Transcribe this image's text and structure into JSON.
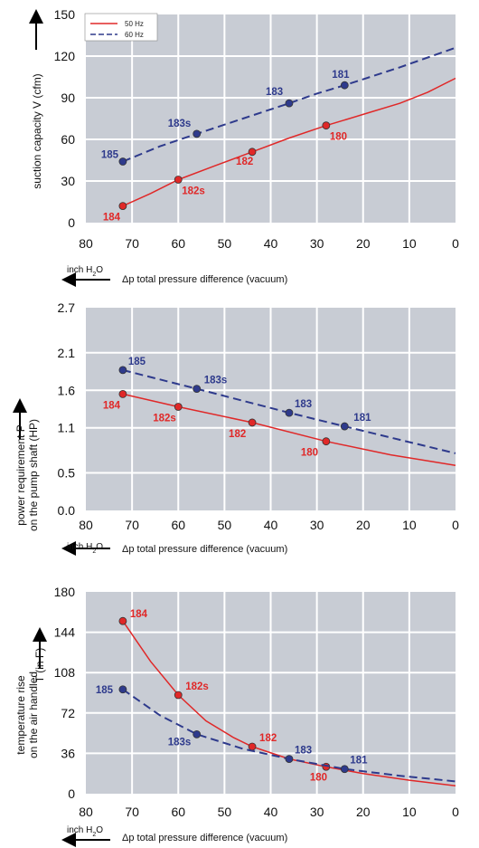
{
  "colors": {
    "series_50": "#e02828",
    "series_60": "#2e3a8c",
    "plot_bg": "#c8ccd4",
    "grid": "#ffffff"
  },
  "legend": {
    "s50": "50 Hz",
    "s60": "60 Hz"
  },
  "arrow_unit": "inch H2O",
  "chart_data": [
    {
      "type": "line",
      "ylabel": "suction capacity V (cfm)",
      "xlabel": "Δp   total pressure difference (vacuum)",
      "xlim": [
        80,
        0
      ],
      "ylim": [
        0,
        150
      ],
      "xticks": [
        80,
        70,
        60,
        50,
        40,
        30,
        20,
        10,
        0
      ],
      "yticks": [
        0,
        30,
        60,
        90,
        120,
        150
      ],
      "legend_position": "top-left",
      "series": [
        {
          "name": "50 Hz",
          "style": "solid",
          "color": "#e02828",
          "curve": [
            [
              72,
              12
            ],
            [
              66,
              21
            ],
            [
              60,
              31
            ],
            [
              52,
              41
            ],
            [
              44,
              51
            ],
            [
              36,
              61
            ],
            [
              28,
              70
            ],
            [
              20,
              78
            ],
            [
              12,
              86
            ],
            [
              6,
              94
            ],
            [
              0,
              104
            ]
          ],
          "points": [
            {
              "x": 72,
              "y": 12,
              "label": "184"
            },
            {
              "x": 60,
              "y": 31,
              "label": "182s"
            },
            {
              "x": 44,
              "y": 51,
              "label": "182"
            },
            {
              "x": 28,
              "y": 70,
              "label": "180"
            }
          ]
        },
        {
          "name": "60 Hz",
          "style": "dashed",
          "color": "#2e3a8c",
          "curve": [
            [
              72,
              44
            ],
            [
              64,
              55
            ],
            [
              56,
              64
            ],
            [
              46,
              75
            ],
            [
              36,
              86
            ],
            [
              30,
              93
            ],
            [
              24,
              99
            ],
            [
              12,
              112
            ],
            [
              0,
              126
            ]
          ],
          "points": [
            {
              "x": 72,
              "y": 44,
              "label": "185"
            },
            {
              "x": 56,
              "y": 64,
              "label": "183s"
            },
            {
              "x": 36,
              "y": 86,
              "label": "183"
            },
            {
              "x": 24,
              "y": 99,
              "label": "181"
            }
          ]
        }
      ]
    },
    {
      "type": "line",
      "ylabel": "power requirement P on the pump shaft (HP)",
      "xlabel": "Δp   total pressure difference (vacuum)",
      "xlim": [
        80,
        0
      ],
      "ylim": [
        0,
        2.7
      ],
      "xticks": [
        80,
        70,
        60,
        50,
        40,
        30,
        20,
        10,
        0
      ],
      "yticks": [
        0.0,
        0.5,
        1.1,
        1.6,
        2.1,
        2.7
      ],
      "series": [
        {
          "name": "50 Hz",
          "style": "solid",
          "color": "#e02828",
          "curve": [
            [
              72,
              1.55
            ],
            [
              60,
              1.38
            ],
            [
              44,
              1.17
            ],
            [
              28,
              0.92
            ],
            [
              14,
              0.74
            ],
            [
              0,
              0.6
            ]
          ],
          "points": [
            {
              "x": 72,
              "y": 1.55,
              "label": "184"
            },
            {
              "x": 60,
              "y": 1.38,
              "label": "182s"
            },
            {
              "x": 44,
              "y": 1.17,
              "label": "182"
            },
            {
              "x": 28,
              "y": 0.92,
              "label": "180"
            }
          ]
        },
        {
          "name": "60 Hz",
          "style": "dashed",
          "color": "#2e3a8c",
          "curve": [
            [
              72,
              1.87
            ],
            [
              56,
              1.62
            ],
            [
              36,
              1.3
            ],
            [
              24,
              1.12
            ],
            [
              12,
              0.94
            ],
            [
              0,
              0.76
            ]
          ],
          "points": [
            {
              "x": 72,
              "y": 1.87,
              "label": "185"
            },
            {
              "x": 56,
              "y": 1.62,
              "label": "183s"
            },
            {
              "x": 36,
              "y": 1.3,
              "label": "183"
            },
            {
              "x": 24,
              "y": 1.12,
              "label": "181"
            }
          ]
        }
      ]
    },
    {
      "type": "line",
      "ylabel": "temperature rise on the air handled",
      "ylabel2": "T    (in F)",
      "xlabel": "Δp   total pressure difference (vacuum)",
      "xlim": [
        80,
        0
      ],
      "ylim": [
        0,
        180
      ],
      "xticks": [
        80,
        70,
        60,
        50,
        40,
        30,
        20,
        10,
        0
      ],
      "yticks": [
        0,
        36,
        72,
        108,
        144,
        180
      ],
      "series": [
        {
          "name": "50 Hz",
          "style": "solid",
          "color": "#e02828",
          "curve": [
            [
              72,
              154
            ],
            [
              66,
              118
            ],
            [
              60,
              88
            ],
            [
              54,
              65
            ],
            [
              48,
              50
            ],
            [
              44,
              42
            ],
            [
              36,
              31
            ],
            [
              28,
              24
            ],
            [
              20,
              18
            ],
            [
              10,
              12
            ],
            [
              0,
              7
            ]
          ],
          "points": [
            {
              "x": 72,
              "y": 154,
              "label": "184"
            },
            {
              "x": 60,
              "y": 88,
              "label": "182s"
            },
            {
              "x": 44,
              "y": 42,
              "label": "182"
            },
            {
              "x": 28,
              "y": 24,
              "label": "180"
            }
          ]
        },
        {
          "name": "60 Hz",
          "style": "dashed",
          "color": "#2e3a8c",
          "curve": [
            [
              72,
              93
            ],
            [
              64,
              70
            ],
            [
              56,
              53
            ],
            [
              46,
              40
            ],
            [
              36,
              31
            ],
            [
              24,
              22
            ],
            [
              12,
              16
            ],
            [
              0,
              11
            ]
          ],
          "points": [
            {
              "x": 72,
              "y": 93,
              "label": "185"
            },
            {
              "x": 56,
              "y": 53,
              "label": "183s"
            },
            {
              "x": 36,
              "y": 31,
              "label": "183"
            },
            {
              "x": 24,
              "y": 22,
              "label": "181"
            }
          ]
        }
      ]
    }
  ]
}
